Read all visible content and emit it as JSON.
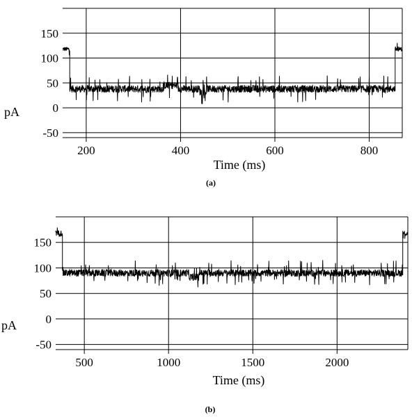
{
  "chart_data": [
    {
      "type": "line",
      "panel_label": "(a)",
      "xlabel": "Time (ms)",
      "ylabel": "pA",
      "xlim": [
        150,
        870
      ],
      "ylim": [
        -60,
        200
      ],
      "xticks": [
        200,
        400,
        600,
        800
      ],
      "yticks": [
        150,
        100,
        50,
        0,
        -50
      ],
      "grid": true,
      "series": [
        {
          "segments": [
            {
              "x": [
                150,
                165
              ],
              "y_mean": 118,
              "noise": 9
            },
            {
              "x": [
                165,
                855
              ],
              "y_mean": 38,
              "noise": 15,
              "substates": [
                {
                  "x": [
                    365,
                    395
                  ],
                  "y_mean": 45
                },
                {
                  "x": [
                    440,
                    455
                  ],
                  "y_mean": 32
                }
              ]
            },
            {
              "x": [
                855,
                870
              ],
              "y_mean": 118,
              "noise": 9
            }
          ]
        }
      ]
    },
    {
      "type": "line",
      "panel_label": "(b)",
      "xlabel": "Time (ms)",
      "ylabel": "pA",
      "xlim": [
        330,
        2420
      ],
      "ylim": [
        -60,
        200
      ],
      "xticks": [
        500,
        1000,
        1500,
        2000
      ],
      "yticks": [
        150,
        100,
        50,
        0,
        -50
      ],
      "grid": true,
      "series": [
        {
          "segments": [
            {
              "x": [
                330,
                370
              ],
              "y_mean": 168,
              "noise": 12
            },
            {
              "x": [
                370,
                2390
              ],
              "y_mean": 90,
              "noise": 14,
              "substates": [
                {
                  "x": [
                    1120,
                    1180
                  ],
                  "y_mean": 82
                }
              ]
            },
            {
              "x": [
                2390,
                2420
              ],
              "y_mean": 168,
              "noise": 12
            }
          ]
        }
      ]
    }
  ]
}
